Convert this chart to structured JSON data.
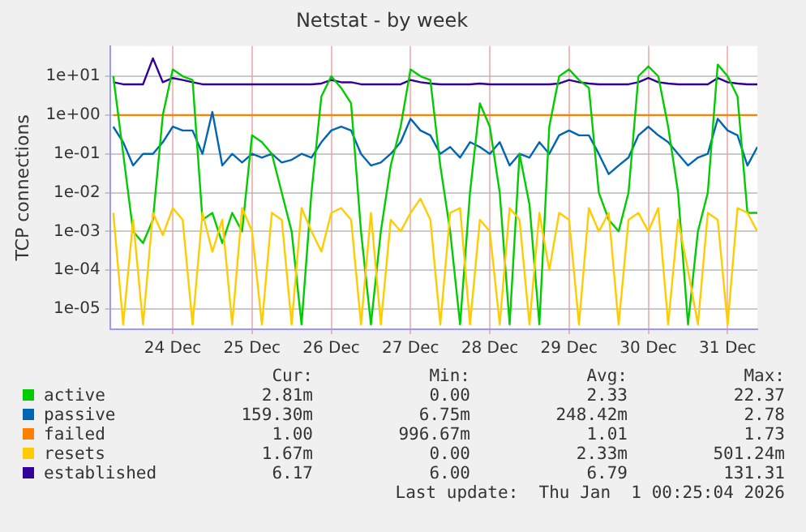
{
  "chart_data": {
    "type": "line",
    "title": "Netstat - by week",
    "ylabel": "TCP connections",
    "log": "y",
    "grid": true,
    "legend": "bottom",
    "marker": "none",
    "line_style": "solid",
    "xlim": [
      "--12-23T05:00",
      "--12-31T09:00"
    ],
    "xticks": [
      {
        "value": "--12-24",
        "label": "24 Dec"
      },
      {
        "value": "--12-25",
        "label": "25 Dec"
      },
      {
        "value": "--12-26",
        "label": "26 Dec"
      },
      {
        "value": "--12-27",
        "label": "27 Dec"
      },
      {
        "value": "--12-28",
        "label": "28 Dec"
      },
      {
        "value": "--12-29",
        "label": "29 Dec"
      },
      {
        "value": "--12-30",
        "label": "30 Dec"
      },
      {
        "value": "--12-31",
        "label": "31 Dec"
      }
    ],
    "ylim": [
      3e-06,
      60
    ],
    "yticks": [
      {
        "value": 1e-05,
        "label": "1e-05"
      },
      {
        "value": 0.0001,
        "label": "1e-04"
      },
      {
        "value": 0.001,
        "label": "1e-03"
      },
      {
        "value": 0.01,
        "label": "1e-02"
      },
      {
        "value": 0.1,
        "label": "1e-01"
      },
      {
        "value": 1,
        "label": "1e+00"
      },
      {
        "value": 10,
        "label": "1e+01"
      }
    ],
    "x": [
      "--12-23T06:00",
      "--12-23T09:00",
      "--12-23T12:00",
      "--12-23T15:00",
      "--12-23T18:00",
      "--12-23T21:00",
      "--12-24T00:00",
      "--12-24T03:00",
      "--12-24T06:00",
      "--12-24T09:00",
      "--12-24T12:00",
      "--12-24T15:00",
      "--12-24T18:00",
      "--12-24T21:00",
      "--12-25T00:00",
      "--12-25T03:00",
      "--12-25T06:00",
      "--12-25T09:00",
      "--12-25T12:00",
      "--12-25T15:00",
      "--12-25T18:00",
      "--12-25T21:00",
      "--12-26T00:00",
      "--12-26T03:00",
      "--12-26T06:00",
      "--12-26T09:00",
      "--12-26T12:00",
      "--12-26T15:00",
      "--12-26T18:00",
      "--12-26T21:00",
      "--12-27T00:00",
      "--12-27T03:00",
      "--12-27T06:00",
      "--12-27T09:00",
      "--12-27T12:00",
      "--12-27T15:00",
      "--12-27T18:00",
      "--12-27T21:00",
      "--12-28T00:00",
      "--12-28T03:00",
      "--12-28T06:00",
      "--12-28T09:00",
      "--12-28T12:00",
      "--12-28T15:00",
      "--12-28T18:00",
      "--12-28T21:00",
      "--12-29T00:00",
      "--12-29T03:00",
      "--12-29T06:00",
      "--12-29T09:00",
      "--12-29T12:00",
      "--12-29T15:00",
      "--12-29T18:00",
      "--12-29T21:00",
      "--12-30T00:00",
      "--12-30T03:00",
      "--12-30T06:00",
      "--12-30T09:00",
      "--12-30T12:00",
      "--12-30T15:00",
      "--12-30T18:00",
      "--12-30T21:00",
      "--12-31T00:00",
      "--12-31T03:00",
      "--12-31T06:00",
      "--12-31T09:00"
    ],
    "series": [
      {
        "name": "resets",
        "color": "#ffcc00",
        "values": [
          0.003,
          4e-06,
          0.002,
          4e-06,
          0.003,
          0.0008,
          0.004,
          0.002,
          4e-06,
          0.003,
          0.0003,
          0.002,
          4e-06,
          0.004,
          0.001,
          4e-06,
          0.003,
          0.002,
          4e-06,
          0.004,
          0.001,
          0.0003,
          0.003,
          0.004,
          0.002,
          4e-06,
          0.003,
          4e-06,
          0.002,
          0.001,
          0.003,
          0.007,
          0.002,
          4e-06,
          0.003,
          0.004,
          4e-06,
          0.002,
          0.001,
          4e-06,
          0.004,
          0.002,
          4e-06,
          0.003,
          0.0001,
          0.003,
          0.002,
          4e-06,
          0.004,
          0.001,
          0.003,
          4e-06,
          0.002,
          0.003,
          0.001,
          0.004,
          4e-06,
          0.002,
          0.0001,
          4e-06,
          0.003,
          0.002,
          4e-06,
          0.004,
          0.003,
          0.001
        ]
      },
      {
        "name": "active",
        "color": "#00cc00",
        "values": [
          10,
          0.1,
          0.001,
          0.0005,
          0.002,
          1,
          15,
          10,
          8,
          0.002,
          0.003,
          0.0005,
          0.003,
          0.001,
          0.3,
          0.2,
          0.1,
          0.01,
          0.001,
          4e-06,
          0.01,
          3,
          10,
          5,
          2,
          0.001,
          4e-06,
          0.001,
          0.05,
          0.5,
          15,
          10,
          8,
          0.05,
          0.001,
          4e-06,
          0.01,
          2,
          0.5,
          0.01,
          4e-06,
          0.1,
          0.005,
          4e-06,
          0.5,
          10,
          15,
          8,
          5,
          0.01,
          0.002,
          0.001,
          0.01,
          10,
          18,
          10,
          0.5,
          0.01,
          4e-06,
          0.001,
          0.01,
          20,
          10,
          3,
          0.003,
          0.003
        ]
      },
      {
        "name": "passive",
        "color": "#0066b3",
        "values": [
          0.5,
          0.2,
          0.05,
          0.1,
          0.1,
          0.2,
          0.5,
          0.4,
          0.4,
          0.1,
          1.2,
          0.05,
          0.1,
          0.06,
          0.1,
          0.08,
          0.1,
          0.06,
          0.07,
          0.1,
          0.08,
          0.2,
          0.4,
          0.5,
          0.4,
          0.1,
          0.05,
          0.06,
          0.1,
          0.2,
          0.8,
          0.4,
          0.3,
          0.1,
          0.15,
          0.08,
          0.2,
          0.15,
          0.1,
          0.2,
          0.05,
          0.1,
          0.08,
          0.2,
          0.1,
          0.3,
          0.4,
          0.3,
          0.3,
          0.1,
          0.03,
          0.05,
          0.08,
          0.3,
          0.5,
          0.3,
          0.2,
          0.1,
          0.05,
          0.08,
          0.1,
          0.8,
          0.4,
          0.3,
          0.05,
          0.15
        ]
      },
      {
        "name": "failed",
        "color": "#ff8000",
        "values": [
          1,
          1,
          1,
          1,
          1,
          1,
          1,
          1,
          1,
          1,
          1,
          1,
          1,
          1,
          1,
          1,
          1,
          1,
          1,
          1,
          1,
          1,
          1,
          1,
          1,
          1,
          1,
          1,
          1,
          1,
          1,
          1,
          1,
          1,
          1,
          1,
          1,
          1,
          1,
          1,
          1,
          1,
          1,
          1,
          1,
          1,
          1,
          1,
          1,
          1,
          1,
          1,
          1,
          1,
          1,
          1,
          1,
          1,
          1,
          1,
          1,
          1,
          1,
          1,
          1,
          1
        ]
      },
      {
        "name": "established",
        "color": "#330099",
        "values": [
          7,
          6.2,
          6.2,
          6.2,
          29,
          7,
          9,
          8,
          7,
          6.2,
          6.2,
          6.2,
          6.2,
          6.2,
          6.2,
          6.2,
          6.2,
          6.2,
          6.2,
          6.2,
          6.2,
          6.5,
          8,
          7,
          7,
          6.2,
          6.2,
          6.2,
          6.2,
          6.2,
          8,
          7,
          6.5,
          6.2,
          6.2,
          6.2,
          6.2,
          6.5,
          6.2,
          6.2,
          6.2,
          6.2,
          6.2,
          6.2,
          6.2,
          6.5,
          8,
          7,
          6.5,
          6.2,
          6.2,
          6.2,
          6.2,
          7,
          9,
          7,
          6.5,
          6.2,
          6.2,
          6.2,
          6.2,
          9,
          7,
          6.5,
          6.2,
          6.2
        ]
      }
    ],
    "annotations": [
      "Cur:",
      "Min:",
      "Avg:",
      "Max:",
      "2.81m",
      "0.00",
      "2.33",
      "22.37",
      "159.30m",
      "6.75m",
      "248.42m",
      "2.78",
      "1.00",
      "996.67m",
      "1.01",
      "1.73",
      "1.67m",
      "0.00",
      "2.33m",
      "501.24m",
      "6.17",
      "6.00",
      "6.79",
      "131.31",
      "Last update:  Thu Jan  1 00:25:04 2026"
    ]
  }
}
